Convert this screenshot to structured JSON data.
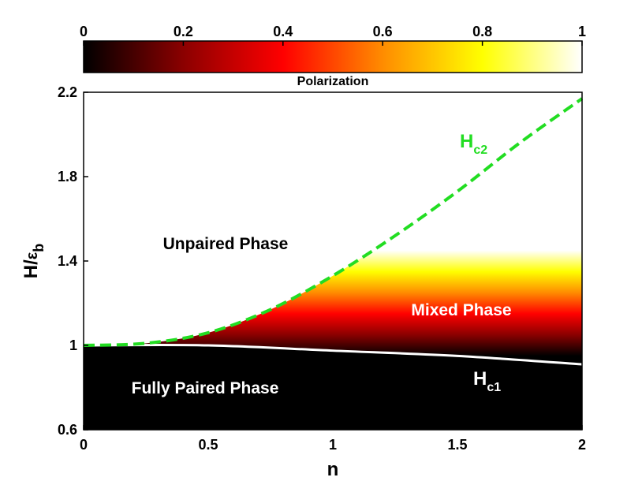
{
  "chart_data": {
    "type": "heatmap",
    "title": "",
    "xlabel": "n",
    "ylabel_main": "H/",
    "ylabel_sym": "ε",
    "ylabel_sub": "b",
    "xlim": [
      0,
      2
    ],
    "ylim": [
      0.6,
      2.2
    ],
    "x_ticks": [
      "0",
      "0.5",
      "1",
      "1.5",
      "2"
    ],
    "y_ticks": [
      "0.6",
      "1",
      "1.4",
      "1.8",
      "2.2"
    ],
    "colorbar": {
      "label": "Polarization",
      "range": [
        0,
        1
      ],
      "ticks": [
        "0",
        "0.2",
        "0.4",
        "0.6",
        "0.8",
        "1"
      ],
      "colormap": "hot",
      "stops": [
        "#000000",
        "#8b0000",
        "#ff0000",
        "#ff8c00",
        "#ffff00",
        "#ffffff"
      ]
    },
    "curves": [
      {
        "label_main": "H",
        "label_sub": "c2",
        "style": "dashed",
        "color": "#22dd22",
        "points": [
          [
            0,
            1.0
          ],
          [
            0.25,
            1.01
          ],
          [
            0.5,
            1.06
          ],
          [
            0.75,
            1.17
          ],
          [
            1.0,
            1.33
          ],
          [
            1.25,
            1.52
          ],
          [
            1.5,
            1.73
          ],
          [
            1.75,
            1.96
          ],
          [
            2.0,
            2.17
          ]
        ]
      },
      {
        "label_main": "H",
        "label_sub": "c1",
        "style": "solid",
        "color": "#ffffff",
        "points": [
          [
            0,
            1.0
          ],
          [
            0.5,
            1.0
          ],
          [
            1.0,
            0.975
          ],
          [
            1.5,
            0.95
          ],
          [
            2.0,
            0.91
          ]
        ]
      }
    ],
    "regions": [
      {
        "label": "Unpaired Phase",
        "color": "#000000"
      },
      {
        "label": "Mixed Phase",
        "color": "#ffffff"
      },
      {
        "label": "Fully Paired Phase",
        "color": "#ffffff"
      }
    ]
  }
}
